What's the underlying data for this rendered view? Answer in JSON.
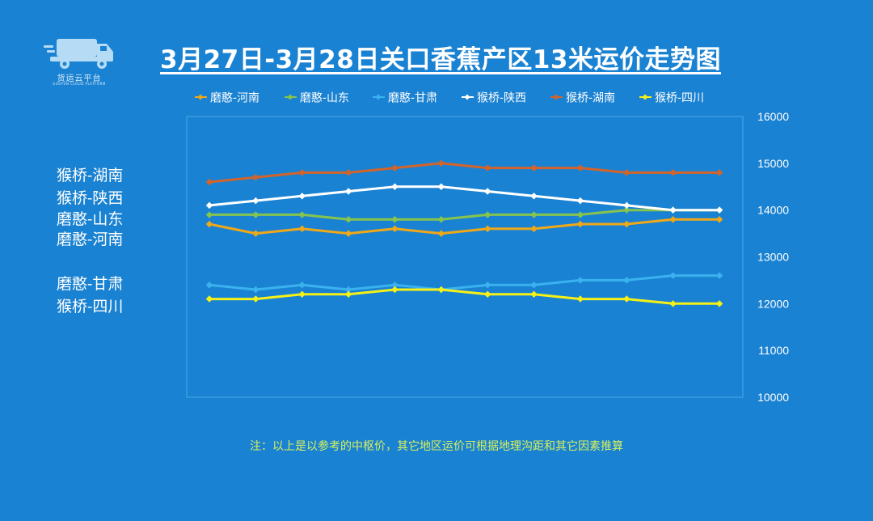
{
  "logo": {
    "name": "货运云平台",
    "subtitle": "GUOYUN CLOUD PLATFORM"
  },
  "title": "3月27日-3月28日关口香蕉产区13米运价走势图",
  "side_labels": [
    "猴桥-湖南",
    "猴桥-陕西",
    "磨憨-山东",
    "磨憨-河南",
    "磨憨-甘肃",
    "猴桥-四川"
  ],
  "note": "注：以上是以参考的中枢价，其它地区运价可根据地理沟距和其它因素推算",
  "colors": {
    "background": "#1a82d2",
    "plot_border": "#4aa8ea",
    "axis_text": "#ffffff"
  },
  "chart_data": {
    "type": "line",
    "title": "3月27日-3月28日关口香蕉产区13米运价走势图",
    "xlabel": "",
    "ylabel": "",
    "ylim": [
      10000,
      16000
    ],
    "yticks": [
      10000,
      11000,
      12000,
      13000,
      14000,
      15000,
      16000
    ],
    "y_axis_side": "right",
    "grid": false,
    "legend_position": "top",
    "series": [
      {
        "name": "磨憨-河南",
        "color": "#f0a818",
        "values": [
          13700,
          13500,
          13600,
          13500,
          13600,
          13500,
          13600,
          13600,
          13700,
          13700,
          13800,
          13800
        ]
      },
      {
        "name": "磨憨-山东",
        "color": "#86c44e",
        "values": [
          13900,
          13900,
          13900,
          13800,
          13800,
          13800,
          13900,
          13900,
          13900,
          14000,
          14000,
          14000
        ]
      },
      {
        "name": "磨憨-甘肃",
        "color": "#3ab2f0",
        "values": [
          12400,
          12300,
          12400,
          12300,
          12400,
          12300,
          12400,
          12400,
          12500,
          12500,
          12600,
          12600
        ]
      },
      {
        "name": "猴桥-陕西",
        "color": "#ffffff",
        "values": [
          14100,
          14200,
          14300,
          14400,
          14500,
          14500,
          14400,
          14300,
          14200,
          14100,
          14000,
          14000
        ]
      },
      {
        "name": "猴桥-湖南",
        "color": "#d2642a",
        "values": [
          14600,
          14700,
          14800,
          14800,
          14900,
          15000,
          14900,
          14900,
          14900,
          14800,
          14800,
          14800
        ]
      },
      {
        "name": "猴桥-四川",
        "color": "#f4f018",
        "values": [
          12100,
          12100,
          12200,
          12200,
          12300,
          12300,
          12200,
          12200,
          12100,
          12100,
          12000,
          12000
        ]
      }
    ]
  }
}
